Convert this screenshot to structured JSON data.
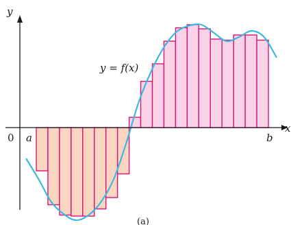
{
  "labels": {
    "y_axis": "y",
    "x_axis": "x",
    "origin": "0",
    "a": "a",
    "b": "b",
    "function": "y = f(x)",
    "caption": "(a)"
  },
  "colors": {
    "curve": "#3db8e0",
    "rect_stroke": "#d6147a",
    "rect_fill_below": "#fbd5c0",
    "rect_fill_above": "#fbd3e6",
    "axis": "#1a1a1a"
  },
  "riemann": {
    "n": 20,
    "rect_heights": [
      -0.42,
      -0.75,
      -0.85,
      -0.86,
      -0.86,
      -0.79,
      -0.68,
      -0.45,
      0.1,
      0.45,
      0.62,
      0.84,
      0.97,
      1.0,
      0.96,
      0.86,
      0.85,
      0.9,
      0.9,
      0.85
    ]
  },
  "curve_samples": [
    -0.3,
    -0.5,
    -0.72,
    -0.84,
    -0.9,
    -0.85,
    -0.72,
    -0.5,
    -0.15,
    0.25,
    0.55,
    0.78,
    0.93,
    0.99,
    1.0,
    0.92,
    0.84,
    0.88,
    0.94,
    0.88,
    0.68
  ]
}
